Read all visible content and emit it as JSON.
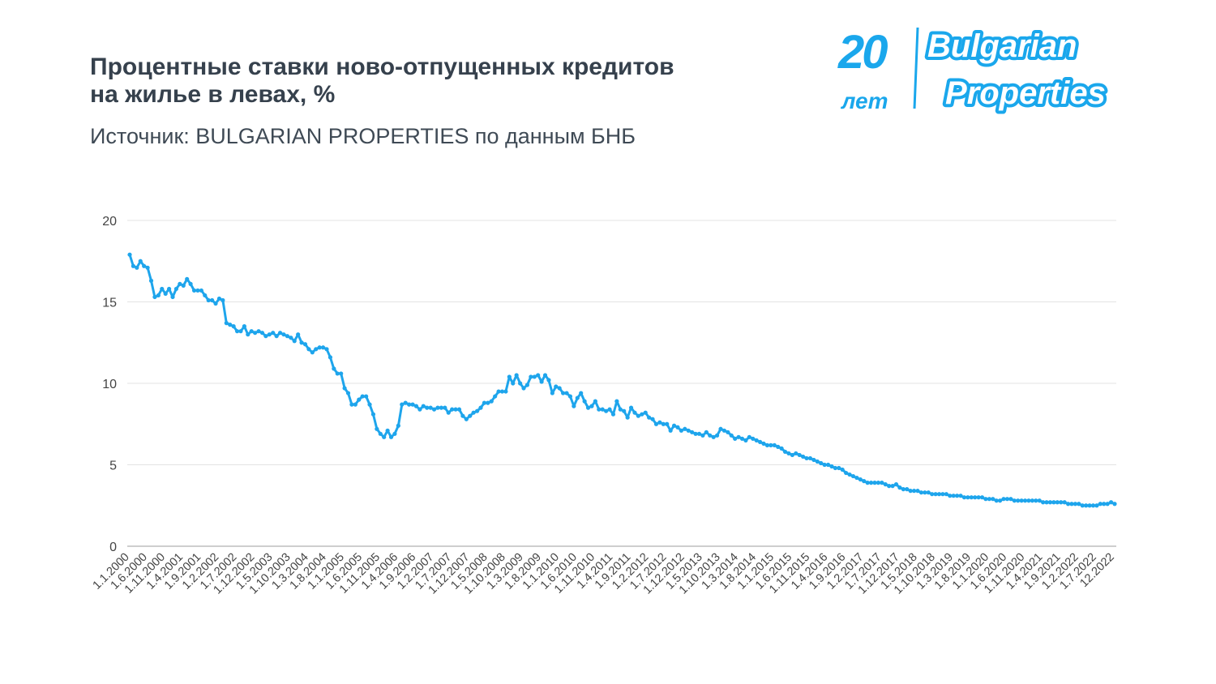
{
  "header": {
    "title_line1": "Процентные ставки ново-отпущенных кредитов",
    "title_line2": "на жилье в левах, %",
    "subtitle": "Источник: BULGARIAN PROPERTIES по данным БНБ"
  },
  "logo": {
    "text_number": "20",
    "text_years": "лет",
    "text_brand1": "Bulgarian",
    "text_brand2": "Properties",
    "color": "#1aa7ec"
  },
  "chart_data": {
    "type": "line",
    "title": "",
    "xlabel": "",
    "ylabel": "",
    "ylim": [
      0,
      20
    ],
    "yticks": [
      0,
      5,
      10,
      15,
      20
    ],
    "grid": true,
    "legend": "none",
    "line_color": "#1ea5ec",
    "markers": true,
    "x_tick_labels": [
      "1.1.2000",
      "1.6.2000",
      "1.11.2000",
      "1.4.2001",
      "1.9.2001",
      "1.2.2002",
      "1.7.2002",
      "1.12.2002",
      "1.5.2003",
      "1.10.2003",
      "1.3.2004",
      "1.8.2004",
      "1.1.2005",
      "1.6.2005",
      "1.11.2005",
      "1.4.2006",
      "1.9.2006",
      "1.2.2007",
      "1.7.2007",
      "1.12.2007",
      "1.5.2008",
      "1.10.2008",
      "1.3.2009",
      "1.8.2009",
      "1.1.2010",
      "1.6.2010",
      "1.11.2010",
      "1.4.2011",
      "1.9.2011",
      "1.2.2012",
      "1.7.2012",
      "1.12.2012",
      "1.5.2013",
      "1.10.2013",
      "1.3.2014",
      "1.8.2014",
      "1.1.2015",
      "1.6.2015",
      "1.11.2015",
      "1.4.2016",
      "1.9.2016",
      "1.2.2017",
      "1.7.2017",
      "1.12.2017",
      "1.5.2018",
      "1.10.2018",
      "1.3.2019",
      "1.8.2019",
      "1.1.2020",
      "1.6.2020",
      "1.11.2020",
      "1.4.2021",
      "1.9.2021",
      "1.2.2022",
      "1.7.2022",
      "12.2022"
    ],
    "values": [
      17.9,
      17.2,
      17.1,
      17.5,
      17.2,
      17.1,
      16.3,
      15.3,
      15.4,
      15.8,
      15.5,
      15.8,
      15.3,
      15.8,
      16.1,
      16.0,
      16.4,
      16.1,
      15.7,
      15.7,
      15.7,
      15.4,
      15.1,
      15.1,
      14.9,
      15.2,
      15.1,
      13.7,
      13.6,
      13.5,
      13.2,
      13.2,
      13.5,
      13.0,
      13.2,
      13.1,
      13.2,
      13.1,
      12.9,
      13.0,
      13.1,
      12.9,
      13.1,
      13.0,
      12.9,
      12.8,
      12.6,
      13.0,
      12.5,
      12.4,
      12.1,
      11.9,
      12.1,
      12.2,
      12.2,
      12.1,
      11.6,
      10.9,
      10.6,
      10.6,
      9.7,
      9.4,
      8.7,
      8.7,
      9.0,
      9.2,
      9.2,
      8.7,
      8.1,
      7.2,
      6.9,
      6.7,
      7.1,
      6.7,
      6.9,
      7.4,
      8.7,
      8.8,
      8.7,
      8.7,
      8.6,
      8.4,
      8.6,
      8.5,
      8.5,
      8.4,
      8.5,
      8.5,
      8.5,
      8.2,
      8.4,
      8.4,
      8.4,
      8.0,
      7.8,
      8.0,
      8.2,
      8.3,
      8.5,
      8.8,
      8.8,
      8.9,
      9.2,
      9.5,
      9.5,
      9.5,
      10.4,
      10.0,
      10.5,
      10.0,
      9.7,
      9.9,
      10.4,
      10.4,
      10.5,
      10.1,
      10.5,
      10.2,
      9.4,
      9.8,
      9.7,
      9.4,
      9.4,
      9.2,
      8.6,
      9.1,
      9.4,
      8.9,
      8.5,
      8.6,
      8.9,
      8.4,
      8.4,
      8.3,
      8.4,
      8.1,
      8.9,
      8.4,
      8.3,
      7.9,
      8.5,
      8.2,
      8.0,
      8.1,
      8.2,
      7.9,
      7.8,
      7.5,
      7.6,
      7.5,
      7.5,
      7.1,
      7.4,
      7.3,
      7.1,
      7.2,
      7.1,
      7.0,
      6.9,
      6.9,
      6.8,
      7.0,
      6.8,
      6.7,
      6.8,
      7.2,
      7.1,
      7.0,
      6.8,
      6.6,
      6.7,
      6.6,
      6.5,
      6.7,
      6.6,
      6.5,
      6.4,
      6.3,
      6.2,
      6.2,
      6.2,
      6.1,
      6.0,
      5.8,
      5.7,
      5.6,
      5.7,
      5.6,
      5.5,
      5.4,
      5.4,
      5.3,
      5.2,
      5.1,
      5.0,
      5.0,
      4.9,
      4.8,
      4.8,
      4.7,
      4.5,
      4.4,
      4.3,
      4.2,
      4.1,
      4.0,
      3.9,
      3.9,
      3.9,
      3.9,
      3.9,
      3.8,
      3.7,
      3.7,
      3.8,
      3.6,
      3.5,
      3.5,
      3.4,
      3.4,
      3.4,
      3.3,
      3.3,
      3.3,
      3.2,
      3.2,
      3.2,
      3.2,
      3.2,
      3.1,
      3.1,
      3.1,
      3.1,
      3.0,
      3.0,
      3.0,
      3.0,
      3.0,
      3.0,
      2.9,
      2.9,
      2.9,
      2.8,
      2.8,
      2.9,
      2.9,
      2.9,
      2.8,
      2.8,
      2.8,
      2.8,
      2.8,
      2.8,
      2.8,
      2.8,
      2.7,
      2.7,
      2.7,
      2.7,
      2.7,
      2.7,
      2.7,
      2.6,
      2.6,
      2.6,
      2.6,
      2.5,
      2.5,
      2.5,
      2.5,
      2.5,
      2.6,
      2.6,
      2.6,
      2.7,
      2.6
    ]
  }
}
